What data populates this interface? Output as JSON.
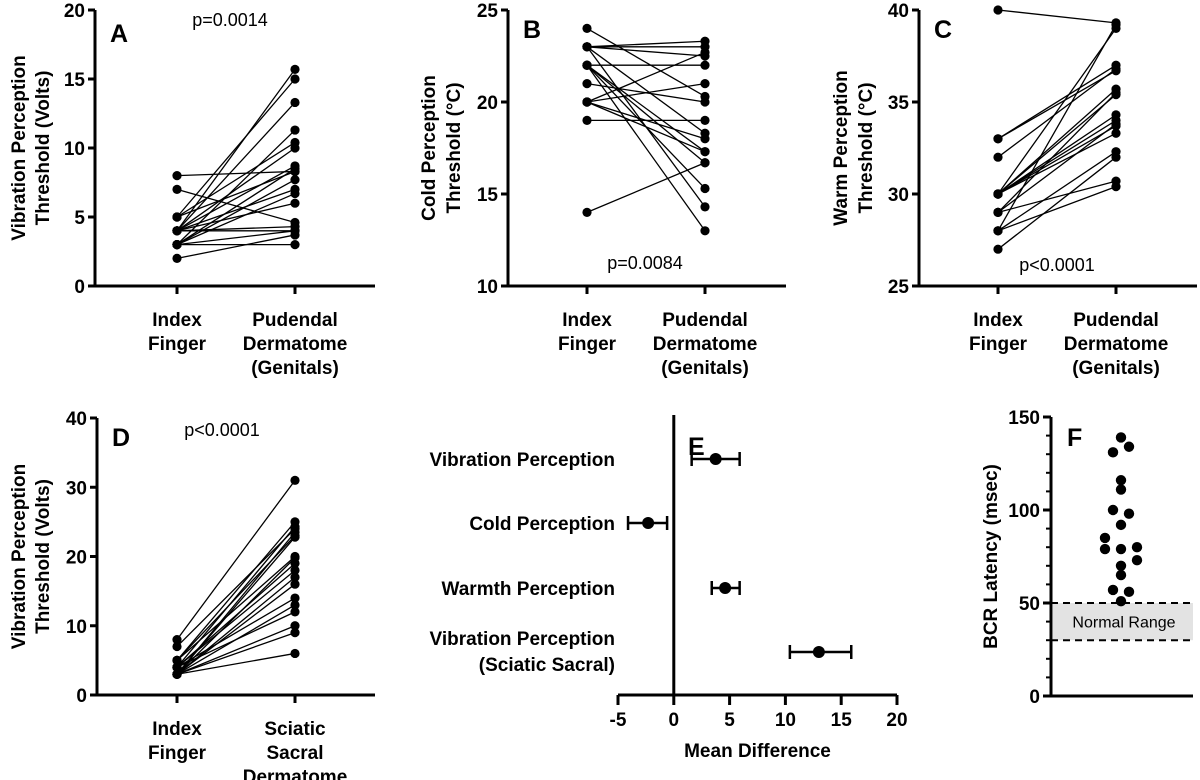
{
  "chart_data": [
    {
      "panel": "A",
      "type": "paired-scatter",
      "annotation": "p=0.0014",
      "ylabel_lines": [
        "Vibration  Perception",
        "Threshold (Volts)"
      ],
      "ylim": [
        0,
        20
      ],
      "yticks": [
        0,
        5,
        10,
        15,
        20
      ],
      "categories": [
        [
          "Index",
          "Finger"
        ],
        [
          "Pudendal",
          "Dermatome",
          "(Genitals)"
        ]
      ],
      "pairs": [
        [
          8,
          8.3
        ],
        [
          7,
          4.6
        ],
        [
          5,
          15
        ],
        [
          5,
          10.4
        ],
        [
          5,
          8.3
        ],
        [
          4,
          15.7
        ],
        [
          4,
          13.3
        ],
        [
          4,
          10
        ],
        [
          4,
          8.7
        ],
        [
          4,
          7
        ],
        [
          4,
          6
        ],
        [
          4,
          4.3
        ],
        [
          4,
          4
        ],
        [
          3,
          11.3
        ],
        [
          3,
          8.5
        ],
        [
          3,
          7.7
        ],
        [
          3,
          6.7
        ],
        [
          3,
          4
        ],
        [
          3,
          3
        ],
        [
          2,
          3.7
        ]
      ]
    },
    {
      "panel": "B",
      "type": "paired-scatter",
      "annotation": "p=0.0084",
      "ylabel_lines": [
        "Cold Perception",
        "Threshold (°C)"
      ],
      "ylim": [
        10,
        25
      ],
      "yticks": [
        10,
        15,
        20,
        25
      ],
      "categories": [
        [
          "Index",
          "Finger"
        ],
        [
          "Pudendal",
          "Dermatome",
          "(Genitals)"
        ]
      ],
      "pairs": [
        [
          24,
          20.3
        ],
        [
          23,
          23.3
        ],
        [
          23,
          23
        ],
        [
          23,
          22.5
        ],
        [
          23,
          18.3
        ],
        [
          23,
          14.3
        ],
        [
          22,
          22
        ],
        [
          22,
          17.3
        ],
        [
          22,
          16.7
        ],
        [
          22,
          15.3
        ],
        [
          22,
          13
        ],
        [
          21,
          20
        ],
        [
          20,
          22.7
        ],
        [
          20,
          18
        ],
        [
          20,
          17.3
        ],
        [
          20,
          21
        ],
        [
          19,
          19
        ],
        [
          14,
          16.7
        ]
      ]
    },
    {
      "panel": "C",
      "type": "paired-scatter",
      "annotation": "p<0.0001",
      "ylabel_lines": [
        "Warm Perception",
        "Threshold (°C)"
      ],
      "ylim": [
        25,
        40
      ],
      "yticks": [
        25,
        30,
        35,
        40
      ],
      "categories": [
        [
          "Index",
          "Finger"
        ],
        [
          "Pudendal",
          "Dermatome",
          "(Genitals)"
        ]
      ],
      "pairs": [
        [
          40,
          39.3
        ],
        [
          33,
          37
        ],
        [
          33,
          36.7
        ],
        [
          32,
          36.8
        ],
        [
          30,
          39
        ],
        [
          30,
          35.7
        ],
        [
          30,
          35.4
        ],
        [
          30,
          34.3
        ],
        [
          30,
          34
        ],
        [
          30,
          33.7
        ],
        [
          30,
          33.3
        ],
        [
          29,
          35.5
        ],
        [
          29,
          33.8
        ],
        [
          29,
          30.7
        ],
        [
          28,
          32.3
        ],
        [
          28,
          30.4
        ],
        [
          28,
          39.2
        ],
        [
          27,
          32
        ]
      ]
    },
    {
      "panel": "D",
      "type": "paired-scatter",
      "annotation": "p<0.0001",
      "ylabel_lines": [
        "Vibration  Perception",
        "Threshold (Volts)"
      ],
      "ylim": [
        0,
        40
      ],
      "yticks": [
        0,
        10,
        20,
        30,
        40
      ],
      "categories": [
        [
          "Index",
          "Finger"
        ],
        [
          "Sciatic",
          "Sacral",
          "Dermatome"
        ]
      ],
      "pairs": [
        [
          8,
          31
        ],
        [
          7,
          24
        ],
        [
          5,
          25
        ],
        [
          5,
          23
        ],
        [
          5,
          20
        ],
        [
          4,
          24.3
        ],
        [
          4,
          19
        ],
        [
          4,
          18
        ],
        [
          4,
          14
        ],
        [
          4,
          12
        ],
        [
          3,
          23.5
        ],
        [
          3,
          22.8
        ],
        [
          3,
          19.8
        ],
        [
          3,
          17
        ],
        [
          3,
          16
        ],
        [
          3,
          13
        ],
        [
          3,
          10
        ],
        [
          3,
          9
        ],
        [
          3,
          6
        ]
      ]
    },
    {
      "panel": "E",
      "type": "forest",
      "xlabel": "Mean Difference",
      "xlim": [
        -5,
        20
      ],
      "xticks": [
        -5,
        0,
        5,
        10,
        15,
        20
      ],
      "rows": [
        {
          "label_lines": [
            "Vibration Perception"
          ],
          "mean": 3.75,
          "lo": 1.6,
          "hi": 5.9
        },
        {
          "label_lines": [
            "Cold Perception"
          ],
          "mean": -2.3,
          "lo": -4.1,
          "hi": -0.6
        },
        {
          "label_lines": [
            "Warmth Perception"
          ],
          "mean": 4.6,
          "lo": 3.4,
          "hi": 5.9
        },
        {
          "label_lines": [
            "Vibration Perception",
            "(Sciatic Sacral)"
          ],
          "mean": 13.0,
          "lo": 10.4,
          "hi": 15.9
        }
      ]
    },
    {
      "panel": "F",
      "type": "scatter",
      "ylabel": "BCR Latency (msec)",
      "ylim": [
        0,
        150
      ],
      "yticks": [
        0,
        50,
        100,
        150
      ],
      "minor_tick_step": 10,
      "normal_range": [
        30,
        50
      ],
      "normal_range_label": "Normal Range",
      "values": [
        139,
        131,
        134,
        116,
        111,
        100,
        98,
        92,
        85,
        79,
        79,
        80,
        73,
        70,
        65,
        57,
        56,
        51
      ],
      "jitter": [
        0,
        -1,
        1,
        0,
        0,
        -1,
        1,
        0,
        -2,
        -2,
        0,
        2,
        2,
        0,
        0,
        -1,
        1,
        0
      ]
    }
  ],
  "colors": {
    "ink": "#000000",
    "normal_range_fill": "#e3e3e3",
    "background": "#ffffff"
  }
}
